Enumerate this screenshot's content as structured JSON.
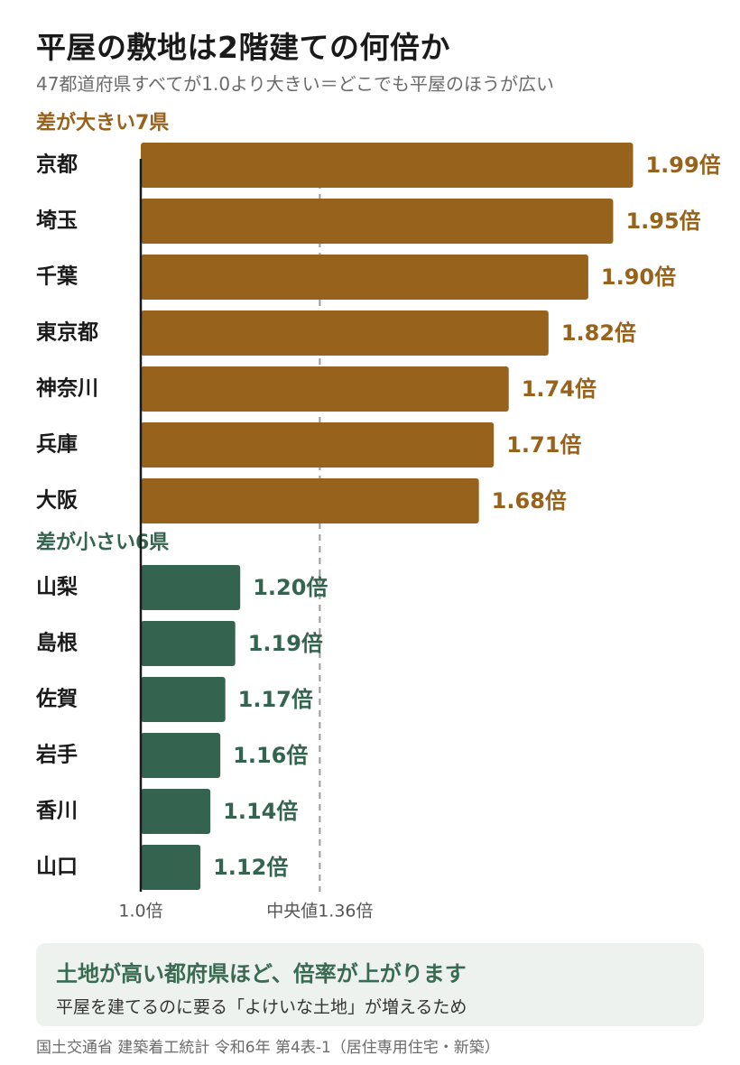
{
  "title": "平屋の敷地は2階建ての何倍か",
  "subtitle": "47都道府県すべてが1.0より大きい＝どこでも平屋のほうが広い",
  "chart_data": {
    "type": "bar",
    "orientation": "horizontal",
    "value_suffix": "倍",
    "baseline_label": "1.0倍",
    "median_label": "中央値1.36倍",
    "median_value": 1.36,
    "xlim": [
      1.0,
      2.0
    ],
    "groups": [
      {
        "label": "差が大きい7県",
        "color": "#97621c",
        "categories": [
          "京都",
          "埼玉",
          "千葉",
          "東京都",
          "神奈川",
          "兵庫",
          "大阪"
        ],
        "values": [
          1.99,
          1.95,
          1.9,
          1.82,
          1.74,
          1.71,
          1.68
        ]
      },
      {
        "label": "差が小さい6県",
        "color": "#346450",
        "categories": [
          "山梨",
          "島根",
          "佐賀",
          "岩手",
          "香川",
          "山口"
        ],
        "values": [
          1.2,
          1.19,
          1.17,
          1.16,
          1.14,
          1.12
        ]
      }
    ]
  },
  "note": {
    "heading": "土地が高い都府県ほど、倍率が上がります",
    "body": "平屋を建てるのに要る「よけいな土地」が増えるため"
  },
  "source": "国土交通省 建築着工統計 令和6年 第4表-1（居住専用住宅・新築）"
}
